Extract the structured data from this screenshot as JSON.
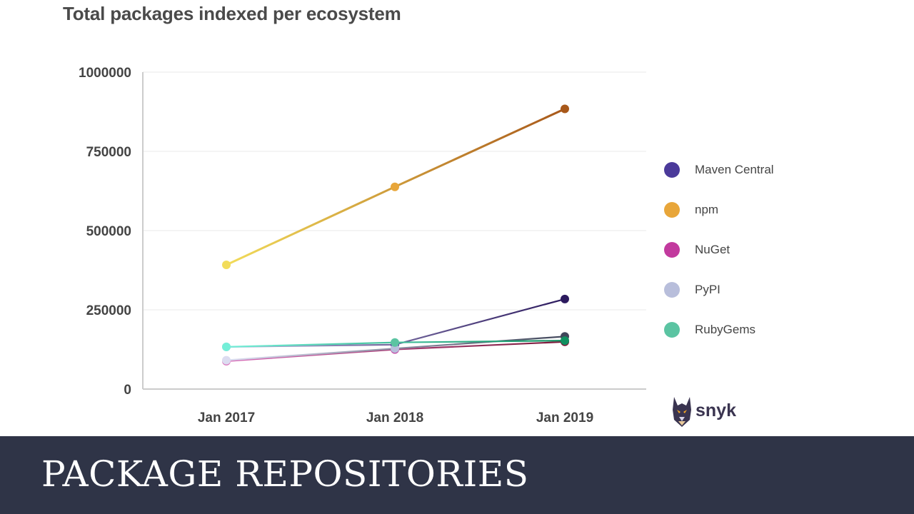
{
  "banner": {
    "text": "PACKAGE REPOSITORIES"
  },
  "brand": {
    "name": "snyk"
  },
  "colors": {
    "banner_bg": "#2f3447",
    "axis": "#cccccc",
    "grid": "#f0f0f0"
  },
  "chart_data": {
    "type": "line",
    "title": "Total packages indexed per ecosystem",
    "xlabel": "",
    "ylabel": "",
    "categories": [
      "Jan 2017",
      "Jan 2018",
      "Jan 2019"
    ],
    "ylim": [
      0,
      1000000
    ],
    "yticks": [
      "0",
      "250000",
      "500000",
      "750000",
      "1000000"
    ],
    "grid": true,
    "legend_position": "right",
    "series": [
      {
        "name": "Maven Central",
        "color": "#4b3a9a",
        "start_color": "#b9b3dc",
        "end_color": "#2c1a5e",
        "values": [
          133000,
          140000,
          284000
        ]
      },
      {
        "name": "npm",
        "color": "#e8a63a",
        "start_color": "#f2dc5a",
        "end_color": "#a8581a",
        "values": [
          392000,
          638000,
          884000
        ]
      },
      {
        "name": "NuGet",
        "color": "#c23a9e",
        "start_color": "#d86ab8",
        "end_color": "#7a1838",
        "values": [
          88000,
          125000,
          149000
        ]
      },
      {
        "name": "PyPI",
        "color": "#b8bedb",
        "start_color": "#dcdcf0",
        "end_color": "#40465a",
        "values": [
          91000,
          128000,
          166000
        ]
      },
      {
        "name": "RubyGems",
        "color": "#5bc4a2",
        "start_color": "#74efd8",
        "end_color": "#119060",
        "values": [
          133000,
          147000,
          153000
        ]
      }
    ]
  }
}
